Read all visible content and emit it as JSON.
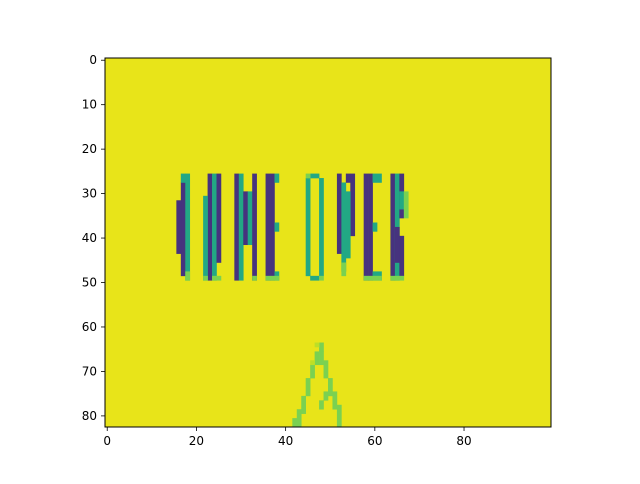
{
  "chart_data": {
    "type": "heatmap",
    "title": "",
    "xlabel": "",
    "ylabel": "",
    "xlim": [
      -0.5,
      99.5
    ],
    "ylim": [
      82.5,
      -0.5
    ],
    "x_ticks": [
      0,
      20,
      40,
      60,
      80
    ],
    "y_ticks": [
      0,
      10,
      20,
      30,
      40,
      50,
      60,
      70,
      80
    ],
    "x_tick_labels": [
      "0",
      "20",
      "40",
      "60",
      "80"
    ],
    "y_tick_labels": [
      "0",
      "10",
      "20",
      "30",
      "40",
      "50",
      "60",
      "70",
      "80"
    ],
    "colormap": "viridis",
    "colors": {
      "background": "#e8e419",
      "dark": "#46337e",
      "edge": "#22a884",
      "edge_light": "#7ad151",
      "light": "#bddf26"
    },
    "grid_size": [
      100,
      83
    ],
    "displayed_text": "GAME OVER"
  }
}
